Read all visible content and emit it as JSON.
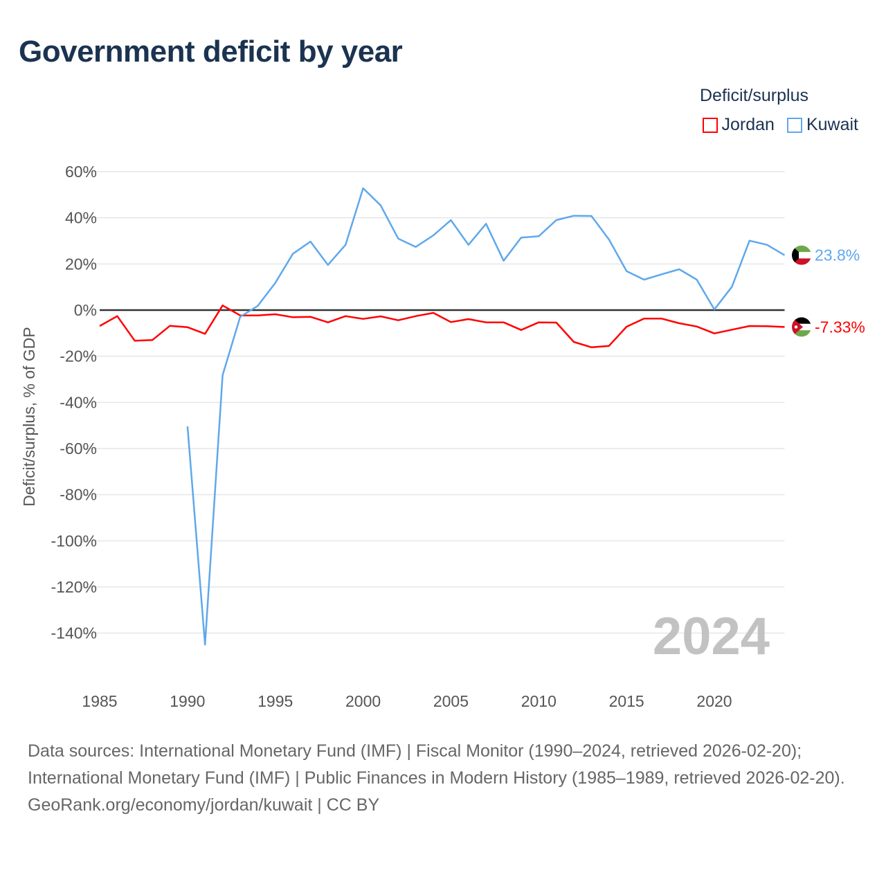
{
  "title": "Government deficit by year",
  "source_text": "Data sources: International Monetary Fund (IMF) | Fiscal Monitor (1990–2024, retrieved 2026-02-20); International Monetary Fund (IMF) | Public Finances in Modern History (1985–1989, retrieved 2026-02-20).",
  "credit": "GeoRank.org/economy/jordan/kuwait | CC BY",
  "chart_data": {
    "type": "line",
    "title": "Government deficit by year",
    "ylabel": "Deficit/surplus, % of GDP",
    "xlabel": "",
    "legend_title": "Deficit/surplus",
    "legend_position": "top-right",
    "year_label": "2024",
    "xlim": [
      1985,
      2024
    ],
    "ylim": [
      -160,
      60
    ],
    "x_ticks": [
      1985,
      1990,
      1995,
      2000,
      2005,
      2010,
      2015,
      2020
    ],
    "y_ticks": [
      60,
      40,
      20,
      0,
      -20,
      -40,
      -60,
      -80,
      -100,
      -120,
      -140
    ],
    "y_tick_labels": [
      "60%",
      "40%",
      "20%",
      "0%",
      "-20%",
      "-40%",
      "-60%",
      "-80%",
      "-100%",
      "-120%",
      "-140%"
    ],
    "grid": true,
    "series": [
      {
        "name": "Jordan",
        "color": "#ff0000",
        "end_label": "-7.33%",
        "start_year": 1985,
        "values": [
          -6.9,
          -2.6,
          -13.3,
          -13,
          -6.8,
          -7.4,
          -10.3,
          2.0,
          -2.3,
          -2.3,
          -1.8,
          -3.1,
          -2.9,
          -5.3,
          -2.6,
          -3.8,
          -2.7,
          -4.4,
          -2.6,
          -1.2,
          -5.2,
          -3.9,
          -5.3,
          -5.3,
          -8.6,
          -5.3,
          -5.4,
          -13.8,
          -16.1,
          -15.5,
          -7.2,
          -3.7,
          -3.7,
          -5.7,
          -7.1,
          -10.1,
          -8.5,
          -6.9,
          -7.0,
          -7.33
        ]
      },
      {
        "name": "Kuwait",
        "color": "#5ea8ec",
        "end_label": "23.8%",
        "start_year": 1990,
        "values": [
          -50.4,
          -145,
          -28.2,
          -2.9,
          1.8,
          11.8,
          24.4,
          29.7,
          19.6,
          28.3,
          52.8,
          45.4,
          31,
          27.4,
          32.4,
          39,
          28.3,
          37.4,
          21.4,
          31.4,
          32,
          39,
          40.9,
          40.8,
          30.6,
          16.9,
          13.2,
          15.5,
          17.7,
          13.2,
          0.3,
          10.1,
          30.1,
          28.3,
          23.8
        ]
      }
    ]
  }
}
